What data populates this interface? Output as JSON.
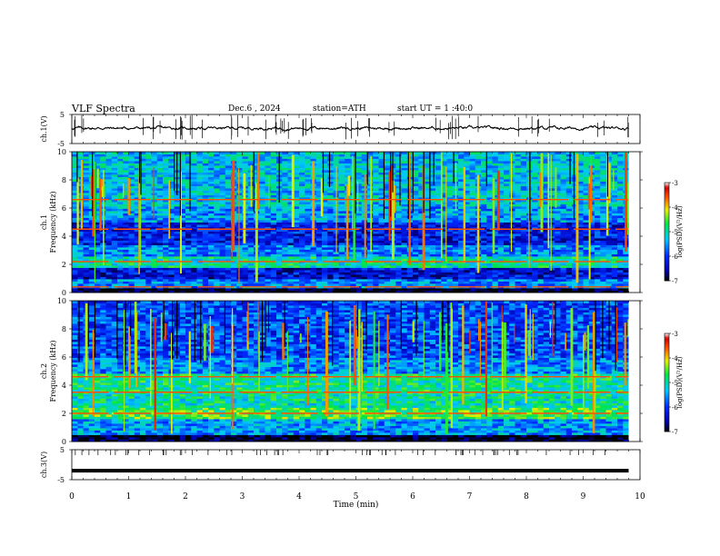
{
  "header": {
    "title": "VLF  Spectra",
    "date": "Dec.6  , 2024",
    "station": "station=ATH",
    "start": "start  UT  =   1 :40:0"
  },
  "chart_data": [
    {
      "type": "line",
      "name": "ch1-waveform",
      "ylabel": "ch.1(V)",
      "ylim": [
        -5,
        5
      ],
      "yticks": [
        "5",
        "-5"
      ],
      "xlim": [
        0,
        10
      ],
      "trace_end_min": 9.8,
      "baseline_v": 0.3
    },
    {
      "type": "heatmap",
      "name": "ch1-spectrogram",
      "ylabel_channel": "ch.1",
      "ylabel": "Frequency  (kHz)",
      "ylim": [
        0,
        10
      ],
      "yticks": [
        "0",
        "2",
        "4",
        "6",
        "8",
        "10"
      ],
      "xlim": [
        0,
        10
      ],
      "colorbar": {
        "label": "log(PSD)(V²/Hz)",
        "range": [
          -7,
          -3
        ],
        "ticks": [
          "-3",
          "-4",
          "-5",
          "-6",
          "-7"
        ]
      },
      "bands": [
        {
          "f0": 0,
          "f1": 0.4,
          "level": -7
        },
        {
          "f0": 0.4,
          "f1": 1.0,
          "level": -5.6
        },
        {
          "f0": 1.0,
          "f1": 1.8,
          "level": -6.3
        },
        {
          "f0": 1.8,
          "f1": 2.6,
          "level": -5.0
        },
        {
          "f0": 2.6,
          "f1": 3.4,
          "level": -5.6
        },
        {
          "f0": 3.4,
          "f1": 5.0,
          "level": -6.2
        },
        {
          "f0": 5.0,
          "f1": 6.2,
          "level": -5.5
        },
        {
          "f0": 6.2,
          "f1": 10,
          "level": -5.3
        }
      ],
      "lines_khz": [
        0.4,
        2.2,
        4.5,
        6.6
      ]
    },
    {
      "type": "heatmap",
      "name": "ch2-spectrogram",
      "ylabel_channel": "ch.2",
      "ylabel": "Frequency  (kHz)",
      "ylim": [
        0,
        10
      ],
      "yticks": [
        "0",
        "2",
        "4",
        "6",
        "8",
        "10"
      ],
      "xlim": [
        0,
        10
      ],
      "colorbar": {
        "label": "log(PSD)(V²/Hz)",
        "range": [
          -7,
          -3
        ],
        "ticks": [
          "-3",
          "-4",
          "-5",
          "-6",
          "-7"
        ]
      },
      "bands": [
        {
          "f0": 0,
          "f1": 0.5,
          "level": -7
        },
        {
          "f0": 0.5,
          "f1": 1.6,
          "level": -5.5
        },
        {
          "f0": 1.6,
          "f1": 2.4,
          "level": -4.6
        },
        {
          "f0": 2.4,
          "f1": 3.4,
          "level": -5.0
        },
        {
          "f0": 3.4,
          "f1": 4.8,
          "level": -4.9
        },
        {
          "f0": 4.8,
          "f1": 6.0,
          "level": -5.6
        },
        {
          "f0": 6.0,
          "f1": 10,
          "level": -5.9
        }
      ],
      "lines_khz": [
        2.0,
        3.5,
        4.6
      ]
    },
    {
      "type": "line",
      "name": "ch3-waveform",
      "ylabel": "ch.3(V)",
      "ylim": [
        -5,
        5
      ],
      "yticks": [
        "5",
        "-5"
      ],
      "xlim": [
        0,
        10
      ],
      "trace_end_min": 9.8,
      "baseline_v": -2.0,
      "xlabel": "Time  (min)",
      "xticks": [
        "0",
        "1",
        "2",
        "3",
        "4",
        "5",
        "6",
        "7",
        "8",
        "9",
        "10"
      ]
    }
  ],
  "colors": {
    "axis": "#000000",
    "trace": "#000000",
    "background": "#ffffff"
  }
}
